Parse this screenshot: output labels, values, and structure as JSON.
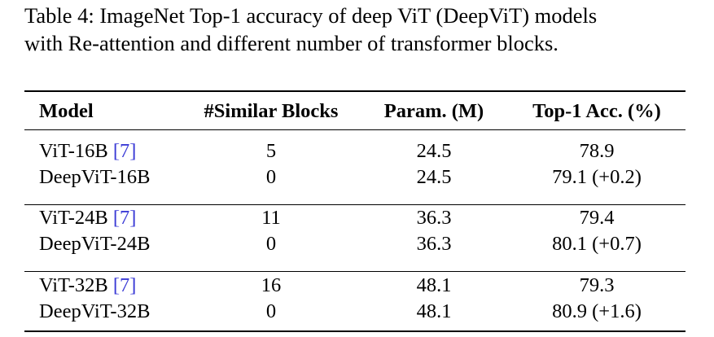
{
  "caption": {
    "line1": "Table 4: ImageNet Top-1 accuracy of deep ViT (DeepViT) models",
    "line2": "with Re-attention and different number of transformer blocks."
  },
  "table": {
    "header": [
      "Model",
      "#Similar Blocks",
      "Param. (M)",
      "Top-1 Acc. (%)"
    ],
    "groups": [
      [
        {
          "model": "ViT-16B",
          "cite": "[7]",
          "blocks": "5",
          "params": "24.5",
          "acc": "78.9"
        },
        {
          "model": "DeepViT-16B",
          "blocks": "0",
          "params": "24.5",
          "acc": "79.1 (+0.2)"
        }
      ],
      [
        {
          "model": "ViT-24B",
          "cite": "[7]",
          "blocks": "11",
          "params": "36.3",
          "acc": "79.4"
        },
        {
          "model": "DeepViT-24B",
          "blocks": "0",
          "params": "36.3",
          "acc": "80.1 (+0.7)"
        }
      ],
      [
        {
          "model": "ViT-32B",
          "cite": "[7]",
          "blocks": "16",
          "params": "48.1",
          "acc": "79.3"
        },
        {
          "model": "DeepViT-32B",
          "blocks": "0",
          "params": "48.1",
          "acc": "80.9 (+1.6)"
        }
      ]
    ]
  }
}
